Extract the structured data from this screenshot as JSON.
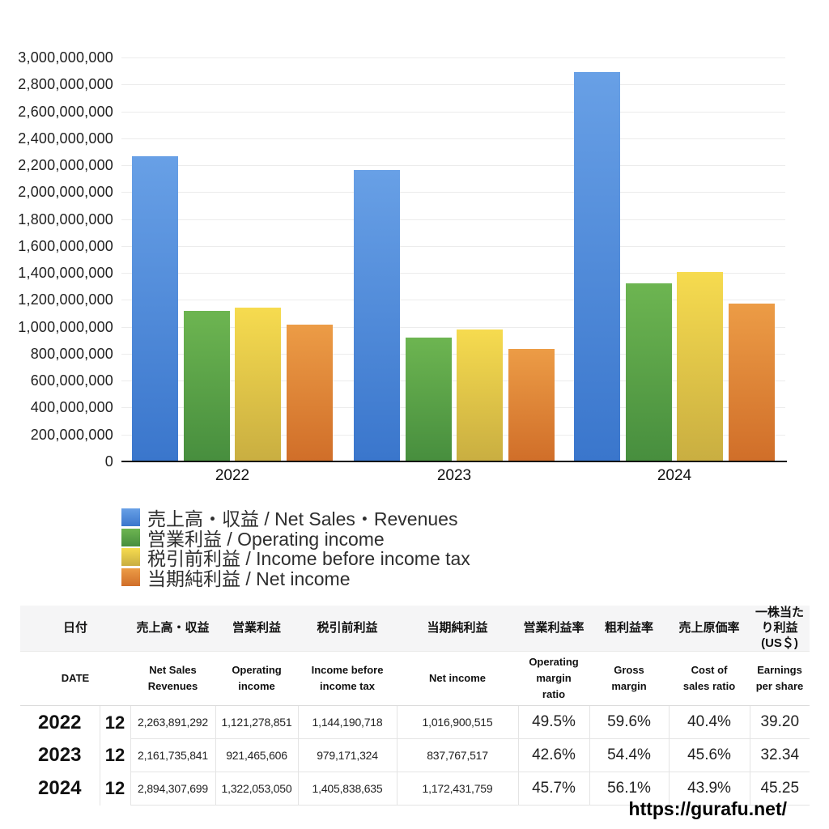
{
  "page": {
    "footer_url": "https://gurafu.net/"
  },
  "chart_data": {
    "type": "bar",
    "title": "",
    "categories": [
      "2022",
      "2023",
      "2024"
    ],
    "series": [
      {
        "name": "売上高・収益 / Net Sales・Revenues",
        "color_top": "#68a0e6",
        "color_bottom": "#3a76cc",
        "values": [
          2263891292,
          2161735841,
          2894307699
        ]
      },
      {
        "name": "営業利益 / Operating income",
        "color_top": "#6db551",
        "color_bottom": "#478e3e",
        "values": [
          1121278851,
          921465606,
          1322053050
        ]
      },
      {
        "name": "税引前利益 / Income before income tax",
        "color_top": "#f6db4f",
        "color_bottom": "#c9ae41",
        "values": [
          1144190718,
          979171324,
          1405838635
        ]
      },
      {
        "name": "当期純利益 / Net income",
        "color_top": "#ec9c46",
        "color_bottom": "#d06e29",
        "values": [
          1016900515,
          837767517,
          1172431759
        ]
      }
    ],
    "ylim": [
      0,
      3000000000
    ],
    "ytick_step": 200000000,
    "ytick_labels": [
      "0",
      "200,000,000",
      "400,000,000",
      "600,000,000",
      "800,000,000",
      "1,000,000,000",
      "1,200,000,000",
      "1,400,000,000",
      "1,600,000,000",
      "1,800,000,000",
      "2,000,000,000",
      "2,200,000,000",
      "2,400,000,000",
      "2,600,000,000",
      "2,800,000,000",
      "3,000,000,000"
    ],
    "grid": true,
    "legend_position": "bottom-left",
    "grid_color": "#ececec",
    "axis_color": "#111111"
  },
  "table": {
    "header_jp": [
      "日付",
      "売上高・収益",
      "営業利益",
      "税引前利益",
      "当期純利益",
      "営業利益率",
      "粗利益率",
      "売上原価率",
      "一株当たり利益\n(US＄)"
    ],
    "header_en": [
      "DATE",
      "Net Sales\nRevenues",
      "Operating\nincome",
      "Income before\nincome tax",
      "Net income",
      "Operating\nmargin\nratio",
      "Gross\nmargin",
      "Cost of\nsales ratio",
      "Earnings\nper share"
    ],
    "rows": [
      {
        "year": "2022",
        "month": "12",
        "values": [
          "2,263,891,292",
          "1,121,278,851",
          "1,144,190,718",
          "1,016,900,515"
        ],
        "ratios": [
          "49.5%",
          "59.6%",
          "40.4%",
          "39.20"
        ]
      },
      {
        "year": "2023",
        "month": "12",
        "values": [
          "2,161,735,841",
          "921,465,606",
          "979,171,324",
          "837,767,517"
        ],
        "ratios": [
          "42.6%",
          "54.4%",
          "45.6%",
          "32.34"
        ]
      },
      {
        "year": "2024",
        "month": "12",
        "values": [
          "2,894,307,699",
          "1,322,053,050",
          "1,405,838,635",
          "1,172,431,759"
        ],
        "ratios": [
          "45.7%",
          "56.1%",
          "43.9%",
          "45.25"
        ]
      }
    ]
  }
}
